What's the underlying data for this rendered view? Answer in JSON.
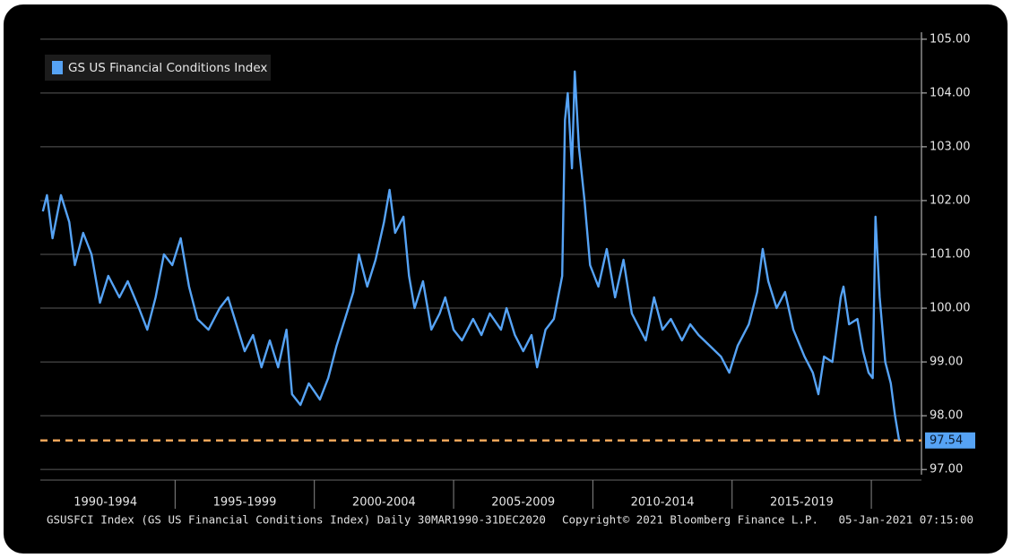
{
  "chart_data": {
    "type": "line",
    "legend": "GS US Financial Conditions Index",
    "series": [
      {
        "name": "GS US Financial Conditions Index",
        "color": "#56a3f5",
        "x": [
          1990.25,
          1990.4,
          1990.6,
          1990.9,
          1991.2,
          1991.4,
          1991.7,
          1992.0,
          1992.3,
          1992.6,
          1993.0,
          1993.3,
          1993.7,
          1994.0,
          1994.3,
          1994.6,
          1994.9,
          1995.2,
          1995.5,
          1995.8,
          1996.2,
          1996.6,
          1996.9,
          1997.2,
          1997.5,
          1997.8,
          1998.1,
          1998.4,
          1998.7,
          1999.0,
          1999.2,
          1999.5,
          1999.8,
          2000.2,
          2000.5,
          2000.8,
          2001.1,
          2001.4,
          2001.6,
          2001.9,
          2002.2,
          2002.5,
          2002.7,
          2002.9,
          2003.2,
          2003.4,
          2003.6,
          2003.9,
          2004.2,
          2004.5,
          2004.7,
          2005.0,
          2005.3,
          2005.7,
          2006.0,
          2006.3,
          2006.7,
          2006.9,
          2007.2,
          2007.5,
          2007.8,
          2008.0,
          2008.3,
          2008.6,
          2008.9,
          2009.0,
          2009.1,
          2009.25,
          2009.35,
          2009.5,
          2009.7,
          2009.9,
          2010.2,
          2010.5,
          2010.8,
          2011.1,
          2011.4,
          2011.7,
          2011.9,
          2012.2,
          2012.5,
          2012.8,
          2013.2,
          2013.5,
          2013.8,
          2014.2,
          2014.6,
          2014.9,
          2015.2,
          2015.6,
          2015.9,
          2016.1,
          2016.3,
          2016.6,
          2016.9,
          2017.2,
          2017.6,
          2017.9,
          2018.1,
          2018.3,
          2018.6,
          2018.9,
          2019.0,
          2019.2,
          2019.5,
          2019.7,
          2019.9,
          2020.05,
          2020.15,
          2020.3,
          2020.5,
          2020.7,
          2020.85,
          2021.0
        ],
        "values": [
          101.8,
          102.1,
          101.3,
          102.1,
          101.6,
          100.8,
          101.4,
          101.0,
          100.1,
          100.6,
          100.2,
          100.5,
          100.0,
          99.6,
          100.2,
          101.0,
          100.8,
          101.3,
          100.4,
          99.8,
          99.6,
          100.0,
          100.2,
          99.7,
          99.2,
          99.5,
          98.9,
          99.4,
          98.9,
          99.6,
          98.4,
          98.2,
          98.6,
          98.3,
          98.7,
          99.3,
          99.8,
          100.3,
          101.0,
          100.4,
          100.9,
          101.6,
          102.2,
          101.4,
          101.7,
          100.6,
          100.0,
          100.5,
          99.6,
          99.9,
          100.2,
          99.6,
          99.4,
          99.8,
          99.5,
          99.9,
          99.6,
          100.0,
          99.5,
          99.2,
          99.5,
          98.9,
          99.6,
          99.8,
          100.6,
          103.5,
          104.0,
          102.6,
          104.4,
          103.0,
          102.0,
          100.8,
          100.4,
          101.1,
          100.2,
          100.9,
          99.9,
          99.6,
          99.4,
          100.2,
          99.6,
          99.8,
          99.4,
          99.7,
          99.5,
          99.3,
          99.1,
          98.8,
          99.3,
          99.7,
          100.3,
          101.1,
          100.5,
          100.0,
          100.3,
          99.6,
          99.1,
          98.8,
          98.4,
          99.1,
          99.0,
          100.2,
          100.4,
          99.7,
          99.8,
          99.2,
          98.8,
          98.7,
          101.7,
          100.2,
          99.0,
          98.6,
          98.0,
          97.54
        ]
      }
    ],
    "xlim": [
      1990,
      2021.8
    ],
    "xseparators": [
      1995,
      2000,
      2005,
      2010,
      2015,
      2020
    ],
    "xticks": [
      {
        "value": 1992.5,
        "label": "1990-1994"
      },
      {
        "value": 1997.5,
        "label": "1995-1999"
      },
      {
        "value": 2002.5,
        "label": "2000-2004"
      },
      {
        "value": 2007.5,
        "label": "2005-2009"
      },
      {
        "value": 2012.5,
        "label": "2010-2014"
      },
      {
        "value": 2017.5,
        "label": "2015-2019"
      }
    ],
    "ylim": [
      96.67,
      105.08
    ],
    "yticks": [
      {
        "value": 97,
        "label": "97.00"
      },
      {
        "value": 98,
        "label": "98.00"
      },
      {
        "value": 99,
        "label": "99.00"
      },
      {
        "value": 100,
        "label": "100.00"
      },
      {
        "value": 101,
        "label": "101.00"
      },
      {
        "value": 102,
        "label": "102.00"
      },
      {
        "value": 103,
        "label": "103.00"
      },
      {
        "value": 104,
        "label": "104.00"
      },
      {
        "value": 105,
        "label": "105.00"
      }
    ],
    "grid": true,
    "ref_line": {
      "value": 97.54,
      "label": "97.54",
      "color": "#f2a65a"
    },
    "footer": {
      "source": "GSUSFCI Index (GS US Financial Conditions Index)  Daily 30MAR1990-31DEC2020",
      "copyright": "Copyright© 2021 Bloomberg Finance L.P.",
      "timestamp": "05-Jan-2021 07:15:00"
    }
  }
}
